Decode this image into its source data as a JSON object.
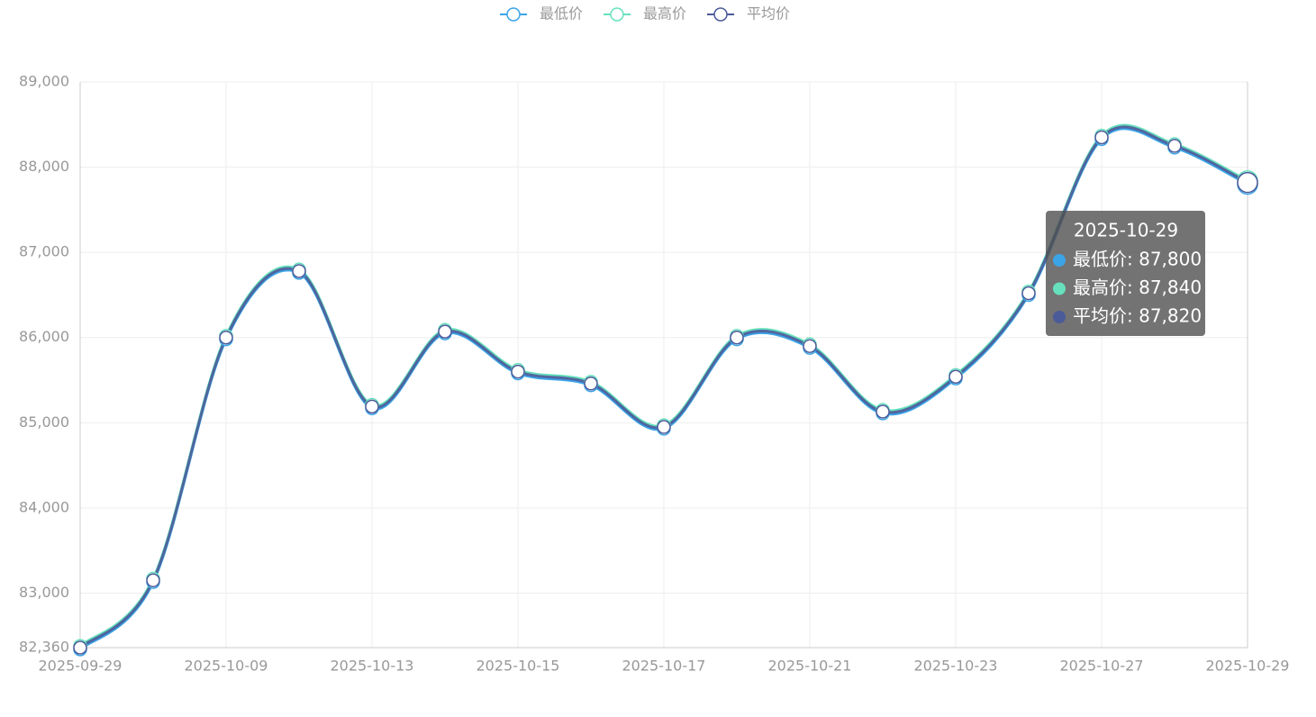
{
  "chart_data": {
    "type": "line",
    "categories": [
      "2025-09-29",
      null,
      "2025-10-09",
      null,
      "2025-10-13",
      null,
      "2025-10-15",
      null,
      "2025-10-17",
      null,
      "2025-10-21",
      null,
      "2025-10-23",
      null,
      "2025-10-27",
      null,
      "2025-10-29"
    ],
    "series": [
      {
        "name": "最低价",
        "color": "#3ba4e6",
        "values": [
          82340,
          83130,
          85980,
          86760,
          85170,
          86050,
          85580,
          85440,
          84930,
          85980,
          85880,
          85110,
          85520,
          86500,
          88330,
          88230,
          87800
        ]
      },
      {
        "name": "最高价",
        "color": "#66e0bd",
        "values": [
          82380,
          83170,
          86020,
          86800,
          85210,
          86090,
          85620,
          85480,
          84970,
          86020,
          85920,
          85150,
          85560,
          86540,
          88370,
          88270,
          87840
        ]
      },
      {
        "name": "平均价",
        "color": "#4b5a99",
        "values": [
          82360,
          83150,
          86000,
          86780,
          85190,
          86070,
          85600,
          85460,
          84950,
          86000,
          85900,
          85130,
          85540,
          86520,
          88350,
          88250,
          87820
        ]
      }
    ],
    "ylim": [
      82360,
      89000
    ],
    "yticks": [
      {
        "value": 82360,
        "label": "82,360"
      },
      {
        "value": 83000,
        "label": "83,000"
      },
      {
        "value": 84000,
        "label": "84,000"
      },
      {
        "value": 85000,
        "label": "85,000"
      },
      {
        "value": 86000,
        "label": "86,000"
      },
      {
        "value": 87000,
        "label": "87,000"
      },
      {
        "value": 88000,
        "label": "88,000"
      },
      {
        "value": 89000,
        "label": "89,000"
      }
    ],
    "grid": true,
    "legend": "top",
    "tooltip": {
      "index": 16,
      "lines": [
        "最低价: 87,800",
        "最高价: 87,840",
        "平均价: 87,820"
      ]
    }
  }
}
